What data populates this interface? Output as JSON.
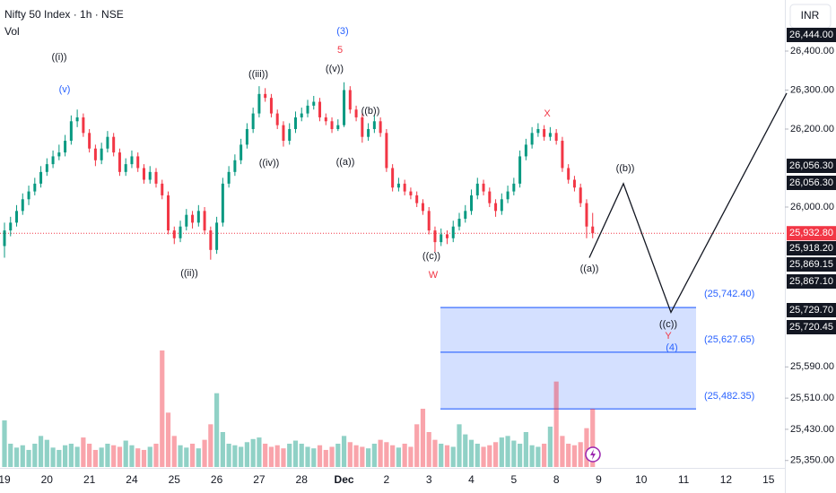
{
  "chart_data": {
    "type": "candlestick",
    "title": "Nifty 50 Index · 1h · NSE",
    "volume_label": "Vol",
    "currency": "INR",
    "ylim": [
      25331,
      26531
    ],
    "yticks": [
      {
        "value": 26400,
        "label": "26,400.00"
      },
      {
        "value": 26300,
        "label": "26,300.00"
      },
      {
        "value": 26200,
        "label": "26,200.00"
      },
      {
        "value": 26000,
        "label": "26,000.00"
      },
      {
        "value": 25590,
        "label": "25,590.00"
      },
      {
        "value": 25510,
        "label": "25,510.00"
      },
      {
        "value": 25430,
        "label": "25,430.00"
      },
      {
        "value": 25350,
        "label": "25,350.00"
      }
    ],
    "xticks": [
      "19",
      "20",
      "21",
      "24",
      "25",
      "26",
      "27",
      "28",
      "Dec",
      "2",
      "3",
      "4",
      "5",
      "8",
      "9",
      "10",
      "11",
      "12",
      "15"
    ],
    "up_color": "#089981",
    "down_color": "#f23645",
    "ohlc": [
      [
        25900,
        25960,
        25870,
        25940
      ],
      [
        25940,
        25975,
        25925,
        25960
      ],
      [
        25960,
        26005,
        25950,
        25990
      ],
      [
        25990,
        26035,
        25980,
        26020
      ],
      [
        26020,
        26055,
        26005,
        26040
      ],
      [
        26040,
        26075,
        26030,
        26060
      ],
      [
        26060,
        26105,
        26050,
        26090
      ],
      [
        26090,
        26125,
        26080,
        26110
      ],
      [
        26110,
        26145,
        26100,
        26130
      ],
      [
        26130,
        26160,
        26120,
        26140
      ],
      [
        26140,
        26185,
        26130,
        26170
      ],
      [
        26170,
        26235,
        26160,
        26220
      ],
      [
        26220,
        26250,
        26205,
        26230
      ],
      [
        26230,
        26240,
        26180,
        26190
      ],
      [
        26190,
        26200,
        26140,
        26150
      ],
      [
        26150,
        26160,
        26105,
        26120
      ],
      [
        26120,
        26165,
        26110,
        26150
      ],
      [
        26150,
        26195,
        26140,
        26180
      ],
      [
        26180,
        26190,
        26130,
        26140
      ],
      [
        26140,
        26150,
        26080,
        26090
      ],
      [
        26090,
        26125,
        26080,
        26110
      ],
      [
        26110,
        26145,
        26100,
        26130
      ],
      [
        26130,
        26140,
        26090,
        26100
      ],
      [
        26100,
        26110,
        26060,
        26070
      ],
      [
        26070,
        26105,
        26060,
        26090
      ],
      [
        26090,
        26100,
        26050,
        26060
      ],
      [
        26060,
        26070,
        26020,
        26030
      ],
      [
        26030,
        26040,
        25930,
        25940
      ],
      [
        25940,
        25950,
        25905,
        25920
      ],
      [
        25920,
        25965,
        25910,
        25950
      ],
      [
        25950,
        25995,
        25940,
        25980
      ],
      [
        25980,
        25990,
        25945,
        25960
      ],
      [
        25960,
        26005,
        25950,
        25990
      ],
      [
        25990,
        26000,
        25930,
        25940
      ],
      [
        25940,
        25950,
        25865,
        25890
      ],
      [
        25890,
        25975,
        25880,
        25960
      ],
      [
        25960,
        26075,
        25950,
        26060
      ],
      [
        26060,
        26105,
        26050,
        26090
      ],
      [
        26090,
        26135,
        26080,
        26120
      ],
      [
        26120,
        26175,
        26110,
        26160
      ],
      [
        26160,
        26215,
        26150,
        26200
      ],
      [
        26200,
        26255,
        26190,
        26240
      ],
      [
        26240,
        26310,
        26230,
        26290
      ],
      [
        26290,
        26305,
        26270,
        26280
      ],
      [
        26280,
        26290,
        26230,
        26240
      ],
      [
        26240,
        26250,
        26200,
        26210
      ],
      [
        26210,
        26220,
        26155,
        26170
      ],
      [
        26170,
        26215,
        26160,
        26200
      ],
      [
        26200,
        26245,
        26190,
        26230
      ],
      [
        26230,
        26255,
        26220,
        26240
      ],
      [
        26240,
        26275,
        26230,
        26260
      ],
      [
        26260,
        26285,
        26250,
        26270
      ],
      [
        26270,
        26280,
        26220,
        26230
      ],
      [
        26230,
        26240,
        26210,
        26220
      ],
      [
        26220,
        26230,
        26190,
        26200
      ],
      [
        26200,
        26225,
        26195,
        26210
      ],
      [
        26210,
        26320,
        26205,
        26300
      ],
      [
        26300,
        26310,
        26240,
        26250
      ],
      [
        26250,
        26260,
        26220,
        26230
      ],
      [
        26230,
        26240,
        26165,
        26180
      ],
      [
        26180,
        26215,
        26170,
        26200
      ],
      [
        26200,
        26235,
        26190,
        26220
      ],
      [
        26220,
        26230,
        26180,
        26190
      ],
      [
        26190,
        26200,
        26090,
        26100
      ],
      [
        26100,
        26110,
        26040,
        26050
      ],
      [
        26050,
        26075,
        26040,
        26060
      ],
      [
        26060,
        26070,
        26030,
        26040
      ],
      [
        26040,
        26050,
        26020,
        26030
      ],
      [
        26030,
        26040,
        26000,
        26010
      ],
      [
        26010,
        26020,
        25980,
        25990
      ],
      [
        25990,
        26000,
        25930,
        25940
      ],
      [
        25940,
        25950,
        25885,
        25910
      ],
      [
        25910,
        25945,
        25900,
        25930
      ],
      [
        25930,
        25940,
        25905,
        25920
      ],
      [
        25920,
        25965,
        25910,
        25950
      ],
      [
        25950,
        25985,
        25940,
        25970
      ],
      [
        25970,
        26005,
        25960,
        25990
      ],
      [
        25990,
        26045,
        25980,
        26030
      ],
      [
        26030,
        26075,
        26020,
        26060
      ],
      [
        26060,
        26070,
        26030,
        26040
      ],
      [
        26040,
        26050,
        26000,
        26010
      ],
      [
        26010,
        26020,
        25975,
        25990
      ],
      [
        25990,
        26035,
        25980,
        26020
      ],
      [
        26020,
        26055,
        26010,
        26040
      ],
      [
        26040,
        26075,
        26030,
        26060
      ],
      [
        26060,
        26145,
        26050,
        26130
      ],
      [
        26130,
        26175,
        26120,
        26160
      ],
      [
        26160,
        26205,
        26150,
        26190
      ],
      [
        26190,
        26215,
        26180,
        26200
      ],
      [
        26200,
        26210,
        26170,
        26180
      ],
      [
        26180,
        26205,
        26170,
        26190
      ],
      [
        26190,
        26200,
        26160,
        26170
      ],
      [
        26170,
        26180,
        26090,
        26100
      ],
      [
        26100,
        26110,
        26060,
        26070
      ],
      [
        26070,
        26080,
        26040,
        26050
      ],
      [
        26050,
        26060,
        26000,
        26010
      ],
      [
        26010,
        26020,
        25920,
        25950
      ],
      [
        25950,
        25985,
        25920,
        25932.8
      ]
    ],
    "volume": [
      60,
      30,
      25,
      28,
      22,
      30,
      40,
      35,
      25,
      22,
      28,
      30,
      26,
      38,
      30,
      22,
      25,
      30,
      28,
      26,
      34,
      28,
      24,
      22,
      26,
      30,
      150,
      70,
      40,
      28,
      25,
      30,
      24,
      35,
      55,
      95,
      45,
      30,
      28,
      26,
      32,
      36,
      38,
      30,
      26,
      28,
      24,
      30,
      34,
      30,
      26,
      24,
      28,
      22,
      26,
      30,
      40,
      32,
      28,
      26,
      24,
      30,
      35,
      32,
      28,
      25,
      30,
      26,
      55,
      75,
      45,
      35,
      30,
      28,
      26,
      55,
      42,
      35,
      30,
      26,
      28,
      32,
      38,
      40,
      34,
      30,
      45,
      28,
      26,
      30,
      52,
      110,
      40,
      30,
      28,
      32,
      50,
      75
    ],
    "last_price": {
      "value": 25932.8,
      "label": "25,932.80"
    },
    "price_tags": [
      "26,444.00",
      "26,056.30",
      "26,056.30",
      "25,918.20",
      "25,869.15",
      "25,867.10",
      "25,729.70",
      "25,720.45"
    ],
    "zone": {
      "color": "#2962ff",
      "levels": [
        {
          "value": 25742.4,
          "label": "(25,742.40)"
        },
        {
          "value": 25627.65,
          "label": "(25,627.65)"
        },
        {
          "value": 25482.35,
          "label": "(25,482.35)"
        }
      ]
    },
    "projection": [
      25870,
      26060,
      25730,
      26292
    ],
    "annotations": [
      {
        "text": "((i))",
        "color": "#131722"
      },
      {
        "text": "(v)",
        "color": "#2962ff"
      },
      {
        "text": "(3)",
        "color": "#2962ff"
      },
      {
        "text": "5",
        "color": "#f23645"
      },
      {
        "text": "((iii))",
        "color": "#131722"
      },
      {
        "text": "((v))",
        "color": "#131722"
      },
      {
        "text": "((b))",
        "color": "#131722"
      },
      {
        "text": "X",
        "color": "#f23645"
      },
      {
        "text": "((iv))",
        "color": "#131722"
      },
      {
        "text": "((a))",
        "color": "#131722"
      },
      {
        "text": "((ii))",
        "color": "#131722"
      },
      {
        "text": "((c))",
        "color": "#131722"
      },
      {
        "text": "W",
        "color": "#f23645"
      },
      {
        "text": "((b))",
        "color": "#131722"
      },
      {
        "text": "((a))",
        "color": "#131722"
      },
      {
        "text": "((c))",
        "color": "#131722"
      },
      {
        "text": "Y",
        "color": "#f23645"
      },
      {
        "text": "(4)",
        "color": "#2962ff"
      }
    ]
  }
}
